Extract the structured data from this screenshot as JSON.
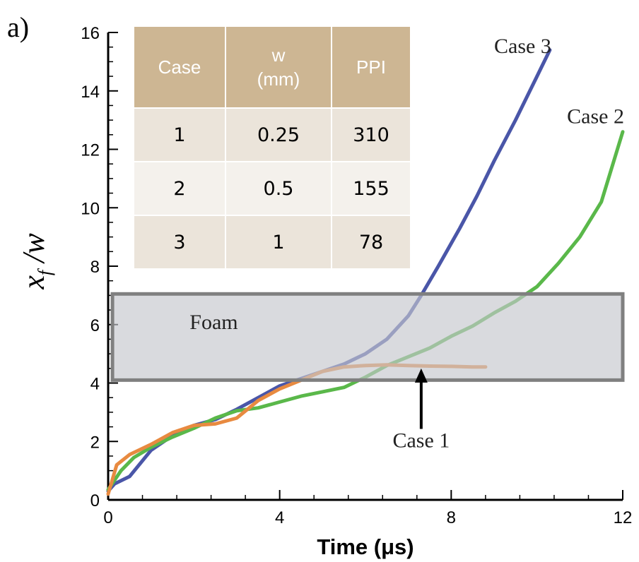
{
  "panel_label": "a)",
  "chart_data": {
    "type": "line",
    "xlabel": "Time (μs)",
    "ylabel": "x_f / w",
    "ylabel_display": {
      "main": "x",
      "sub": "f",
      "rest": "/w"
    },
    "xlim": [
      0,
      12
    ],
    "ylim": [
      0,
      16
    ],
    "xticks": [
      0,
      4,
      8,
      12
    ],
    "yticks": [
      0,
      2,
      4,
      6,
      8,
      10,
      12,
      14,
      16
    ],
    "grid": false,
    "series": [
      {
        "name": "Case 3",
        "color": "#4a56a8",
        "x": [
          0,
          0.15,
          0.5,
          1.0,
          1.5,
          2.0,
          2.5,
          3.0,
          3.5,
          4.0,
          4.5,
          5.0,
          5.5,
          6.0,
          6.5,
          7.0,
          7.3,
          7.7,
          8.2,
          8.6,
          9.0,
          9.5,
          10.0,
          10.3
        ],
        "y": [
          0.3,
          0.55,
          0.8,
          1.7,
          2.2,
          2.55,
          2.75,
          3.1,
          3.5,
          3.9,
          4.15,
          4.4,
          4.65,
          5.0,
          5.5,
          6.3,
          7.0,
          8.0,
          9.3,
          10.4,
          11.6,
          13.0,
          14.5,
          15.4
        ]
      },
      {
        "name": "Case 2",
        "color": "#5ab84a",
        "x": [
          0,
          0.3,
          0.6,
          1.0,
          1.5,
          2.0,
          2.5,
          3.0,
          3.5,
          4.0,
          4.5,
          5.0,
          5.5,
          6.0,
          6.5,
          7.0,
          7.5,
          8.0,
          8.5,
          9.0,
          9.5,
          10.0,
          10.5,
          11.0,
          11.5,
          12.0
        ],
        "y": [
          0.35,
          1.0,
          1.45,
          1.8,
          2.15,
          2.45,
          2.8,
          3.05,
          3.15,
          3.35,
          3.55,
          3.7,
          3.85,
          4.2,
          4.6,
          4.9,
          5.2,
          5.6,
          5.95,
          6.4,
          6.8,
          7.3,
          8.1,
          9.0,
          10.2,
          12.6
        ]
      },
      {
        "name": "Case 1",
        "color": "#e88a40",
        "x": [
          0,
          0.2,
          0.5,
          1.0,
          1.5,
          2.0,
          2.5,
          3.0,
          3.5,
          4.0,
          4.5,
          5.0,
          5.5,
          6.0,
          6.5,
          7.0,
          7.5,
          8.0,
          8.5,
          8.8
        ],
        "y": [
          0.2,
          1.2,
          1.55,
          1.9,
          2.3,
          2.55,
          2.6,
          2.8,
          3.4,
          3.8,
          4.1,
          4.4,
          4.55,
          4.6,
          4.62,
          4.6,
          4.58,
          4.57,
          4.55,
          4.55
        ]
      }
    ],
    "annotations": [
      {
        "text": "Case 3",
        "x": 9.0,
        "y": 15.3
      },
      {
        "text": "Case 2",
        "x": 10.7,
        "y": 12.9
      },
      {
        "text": "Case 1",
        "x": 7.3,
        "y": 1.8,
        "arrow_to": {
          "x": 7.3,
          "y": 4.5
        }
      },
      {
        "text": "Foam",
        "x": 1.9,
        "y": 5.85
      }
    ],
    "foam_region": {
      "x_start": 0.1,
      "x_end": 12.0,
      "y_start": 4.1,
      "y_end": 7.05,
      "fill": "#c4c6cc",
      "stroke": "#808080"
    }
  },
  "table": {
    "headers": [
      {
        "lines": [
          "Case"
        ]
      },
      {
        "lines": [
          "w",
          "(mm)"
        ]
      },
      {
        "lines": [
          "PPI"
        ]
      }
    ],
    "rows": [
      [
        "1",
        "0.25",
        "310"
      ],
      [
        "2",
        "0.5",
        "155"
      ],
      [
        "3",
        "1",
        "78"
      ]
    ],
    "header_color": "#cdb693"
  }
}
